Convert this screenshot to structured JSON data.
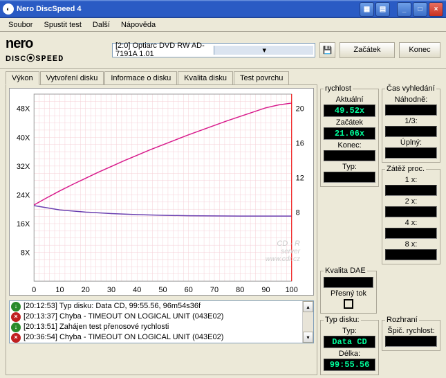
{
  "window": {
    "title": "Nero DiscSpeed 4"
  },
  "menu": {
    "items": [
      "Soubor",
      "Spustit test",
      "Další",
      "Nápověda"
    ]
  },
  "logo": {
    "line1": "nero",
    "line2a": "DISC",
    "line2b": "SPEED"
  },
  "drive": {
    "text": "[2:0]   Optiarc DVD RW AD-7191A 1.01"
  },
  "buttons": {
    "start": "Začátek",
    "end": "Konec"
  },
  "tabs": {
    "items": [
      "Výkon",
      "Vytvoření disku",
      "Informace o disku",
      "Kvalita disku",
      "Test povrchu"
    ],
    "active": 0
  },
  "chart": {
    "xmin": 0,
    "xmax": 100,
    "xtick": 10,
    "yL_max": 48,
    "yL_ticks": [
      8,
      16,
      24,
      32,
      40,
      48
    ],
    "yR_ticks": [
      8,
      12,
      16,
      20
    ],
    "grid_color": "#f5cfd6",
    "bg": "#ffffff",
    "series": {
      "speed": {
        "color": "#d81b8c",
        "points": [
          [
            0,
            21.2
          ],
          [
            5,
            23.2
          ],
          [
            10,
            25.1
          ],
          [
            15,
            26.9
          ],
          [
            20,
            28.6
          ],
          [
            25,
            30.3
          ],
          [
            30,
            31.9
          ],
          [
            35,
            33.5
          ],
          [
            40,
            35.0
          ],
          [
            45,
            36.5
          ],
          [
            50,
            37.9
          ],
          [
            55,
            39.3
          ],
          [
            60,
            40.7
          ],
          [
            65,
            42.0
          ],
          [
            70,
            43.3
          ],
          [
            75,
            44.6
          ],
          [
            80,
            45.8
          ],
          [
            85,
            47.0
          ],
          [
            90,
            48.2
          ],
          [
            95,
            49.0
          ],
          [
            100,
            49.5
          ]
        ]
      },
      "cpu": {
        "color": "#6a3fb0",
        "points": [
          [
            0,
            21.0
          ],
          [
            10,
            19.8
          ],
          [
            20,
            19.2
          ],
          [
            30,
            18.8
          ],
          [
            40,
            18.5
          ],
          [
            50,
            18.3
          ],
          [
            60,
            18.2
          ],
          [
            70,
            18.15
          ],
          [
            80,
            18.1
          ],
          [
            90,
            18.1
          ],
          [
            100,
            18.1
          ]
        ]
      }
    }
  },
  "panels": {
    "speed": {
      "title": "rychlost",
      "current_lbl": "Aktuální",
      "current": "49.52x",
      "start_lbl": "Začátek",
      "start": "21.06x",
      "end_lbl": "Konec:",
      "type_lbl": "Typ:"
    },
    "seek": {
      "title": "Čas vyhledání",
      "random_lbl": "Náhodně:",
      "third_lbl": "1/3:",
      "full_lbl": "Úplný:"
    },
    "cpu": {
      "title": "Zátěž proc.",
      "l1": "1 x:",
      "l2": "2 x:",
      "l4": "4 x:",
      "l8": "8 x:"
    },
    "dae": {
      "title": "Kvalita DAE",
      "accurate_lbl": "Přesný tok"
    },
    "disctype": {
      "title": "Typ disku:",
      "type_lbl": "Typ:",
      "type": "Data CD",
      "len_lbl": "Délka:",
      "len": "99:55.56"
    },
    "iface": {
      "title": "Rozhraní",
      "burst_lbl": "Špič. rychlost:"
    }
  },
  "log": {
    "lines": [
      {
        "ok": true,
        "time": "[20:12:53]",
        "text": "Typ disku: Data CD, 99:55.56, 96m54s36f"
      },
      {
        "ok": false,
        "time": "[20:13:37]",
        "text": "Chyba - TIMEOUT ON LOGICAL UNIT (043E02)"
      },
      {
        "ok": true,
        "time": "[20:13:51]",
        "text": "Zahájen test přenosové rychlosti"
      },
      {
        "ok": false,
        "time": "[20:36:54]",
        "text": "Chyba - TIMEOUT ON LOGICAL UNIT (043E02)"
      }
    ]
  },
  "watermark": {
    "l1": "CD - R",
    "l2": "server",
    "l3": "www.cdr.cz"
  }
}
